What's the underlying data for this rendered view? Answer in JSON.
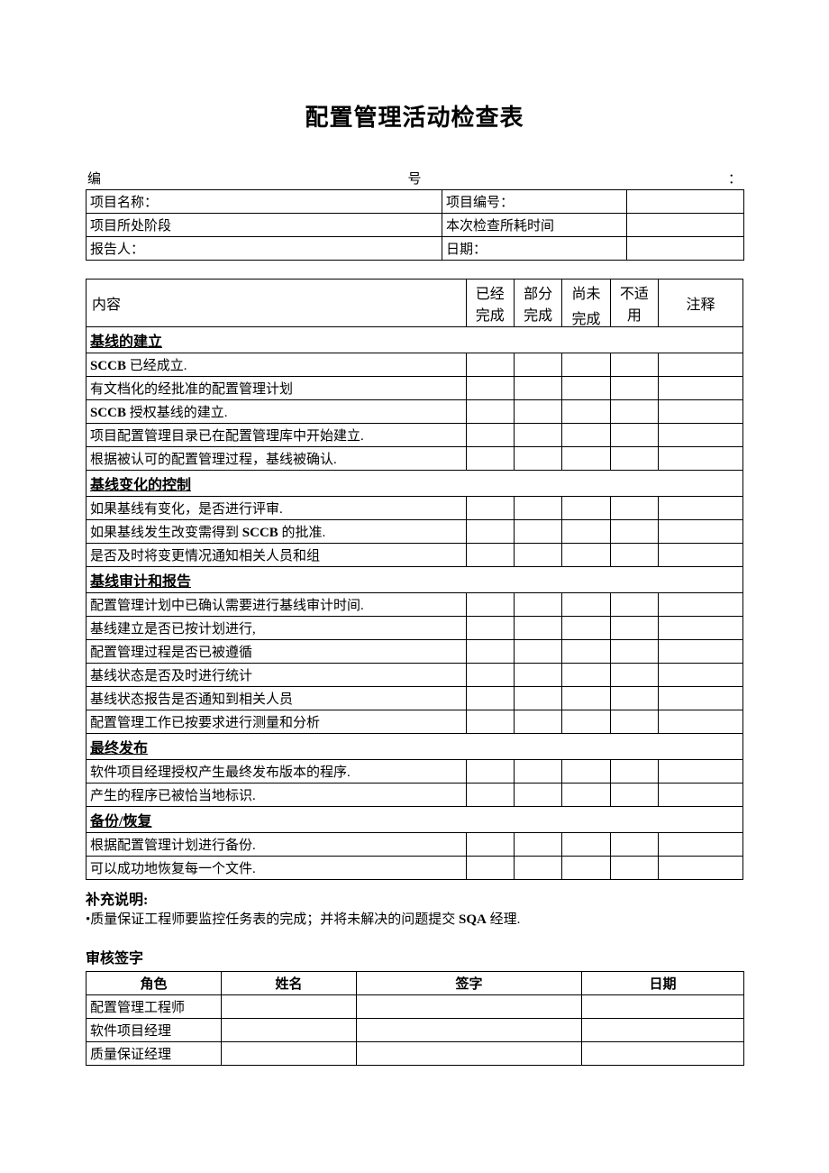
{
  "title": "配置管理活动检查表",
  "serial": {
    "label_left": "编",
    "label_mid": "号",
    "label_right": "："
  },
  "meta": {
    "rows": [
      {
        "l1": "项目名称：",
        "l2": "项目编号："
      },
      {
        "l1": "项目所处阶段",
        "l2": "本次检查所耗时间"
      },
      {
        "l1": "报告人：",
        "l2": "日期："
      }
    ]
  },
  "check": {
    "headers": {
      "content": "内容",
      "done_l1": "已经",
      "done_l2": "完成",
      "part_l1": "部分",
      "part_l2": "完成",
      "no_l1": "尚未",
      "no_l2": "完成",
      "na_l1": "不适",
      "na_l2": "用",
      "notes": "注释"
    },
    "sections": [
      {
        "heading": "基线的建立",
        "items": [
          {
            "pre": "SCCB",
            "text": " 已经成立."
          },
          {
            "text": "有文档化的经批准的配置管理计划"
          },
          {
            "pre": "SCCB",
            "text": " 授权基线的建立."
          },
          {
            "text": "项目配置管理目录已在配置管理库中开始建立."
          },
          {
            "text": "根据被认可的配置管理过程，基线被确认."
          }
        ]
      },
      {
        "heading": "基线变化的控制",
        "items": [
          {
            "text": "如果基线有变化，是否进行评审."
          },
          {
            "mid": "SCCB",
            "text_pre": "如果基线发生改变需得到 ",
            "text_post": " 的批准."
          },
          {
            "text": "是否及时将变更情况通知相关人员和组"
          }
        ]
      },
      {
        "heading": "基线审计和报告",
        "items": [
          {
            "text": "配置管理计划中已确认需要进行基线审计时间."
          },
          {
            "text": "基线建立是否已按计划进行,"
          },
          {
            "text": "配置管理过程是否已被遵循"
          },
          {
            "text": "基线状态是否及时进行统计"
          },
          {
            "text": "基线状态报告是否通知到相关人员"
          },
          {
            "text": "配置管理工作已按要求进行测量和分析"
          }
        ]
      },
      {
        "heading": "最终发布",
        "items": [
          {
            "text": "软件项目经理授权产生最终发布版本的程序."
          },
          {
            "text": "产生的程序已被恰当地标识."
          }
        ]
      },
      {
        "heading": "备份/恢复",
        "items": [
          {
            "text": "根据配置管理计划进行备份."
          },
          {
            "text": "可以成功地恢复每一个文件."
          }
        ]
      }
    ]
  },
  "notes": {
    "heading": "补充说明:",
    "bullet": "•",
    "text_pre": "质量保证工程师要监控任务表的完成；并将未解决的问题提交 ",
    "en": "SQA",
    "text_post": " 经理."
  },
  "sign": {
    "heading": "审核签字",
    "headers": {
      "role": "角色",
      "name": "姓名",
      "sign": "签字",
      "date": "日期"
    },
    "roles": [
      "配置管理工程师",
      "软件项目经理",
      "质量保证经理"
    ]
  },
  "style": {
    "background": "#ffffff",
    "text_color": "#000000",
    "border_color": "#000000",
    "title_fontsize": 26,
    "body_fontsize": 15,
    "header_fontsize": 16
  }
}
